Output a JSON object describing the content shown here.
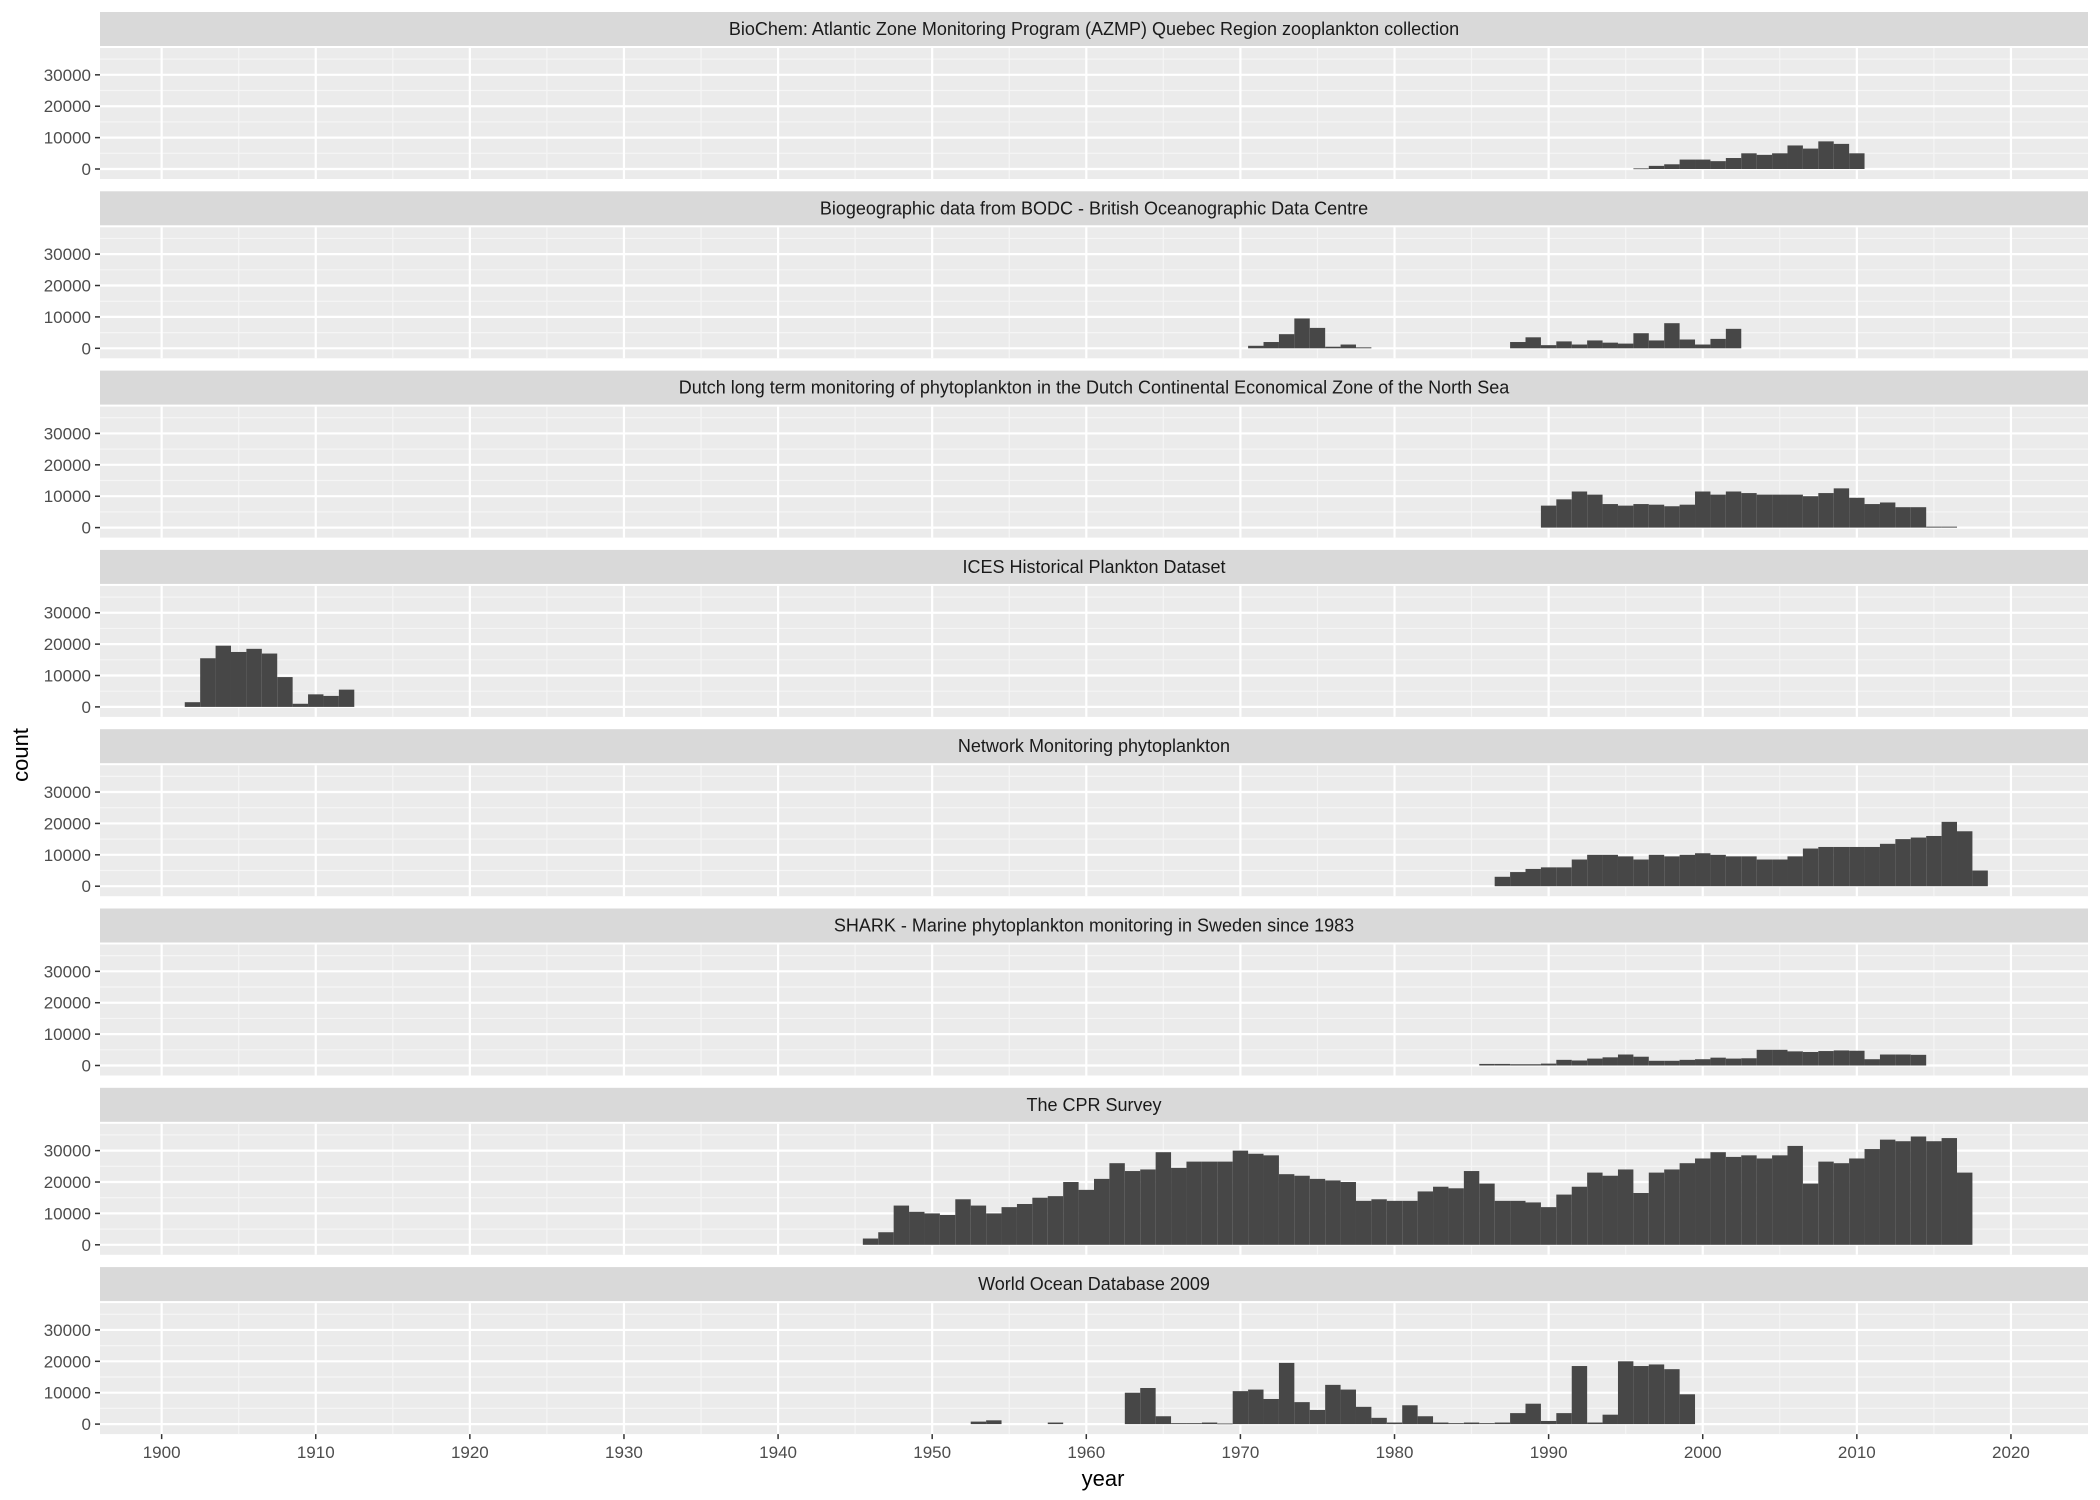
{
  "chart_data": {
    "type": "bar",
    "subtype": "faceted-histogram",
    "xlabel": "year",
    "ylabel": "count",
    "xlim": [
      1896,
      2025
    ],
    "ylim": [
      0,
      36000
    ],
    "x_ticks": [
      1900,
      1910,
      1920,
      1930,
      1940,
      1950,
      1960,
      1970,
      1980,
      1990,
      2000,
      2010,
      2020
    ],
    "y_ticks": [
      0,
      10000,
      20000,
      30000
    ],
    "bin_width": 1,
    "grid": true,
    "colors": {
      "panel_background": "#EBEBEB",
      "strip_background": "#D9D9D9",
      "bar": "#474747",
      "grid_major": "#FFFFFF",
      "grid_minor": "#F5F5F5"
    },
    "facets": [
      {
        "title": "BioChem: Atlantic Zone Monitoring Program (AZMP) Quebec Region zooplankton collection",
        "bins": [
          [
            1996,
            200
          ],
          [
            1997,
            1000
          ],
          [
            1998,
            1500
          ],
          [
            1999,
            3000
          ],
          [
            2000,
            3000
          ],
          [
            2001,
            2500
          ],
          [
            2002,
            3500
          ],
          [
            2003,
            5000
          ],
          [
            2004,
            4500
          ],
          [
            2005,
            5000
          ],
          [
            2006,
            7500
          ],
          [
            2007,
            6500
          ],
          [
            2008,
            8800
          ],
          [
            2009,
            8000
          ],
          [
            2010,
            5000
          ]
        ]
      },
      {
        "title": "Biogeographic data from BODC - British Oceanographic Data Centre",
        "bins": [
          [
            1971,
            800
          ],
          [
            1972,
            2000
          ],
          [
            1973,
            4500
          ],
          [
            1974,
            9500
          ],
          [
            1975,
            6500
          ],
          [
            1976,
            500
          ],
          [
            1977,
            1200
          ],
          [
            1978,
            300
          ],
          [
            1988,
            2000
          ],
          [
            1989,
            3500
          ],
          [
            1990,
            1000
          ],
          [
            1991,
            2200
          ],
          [
            1992,
            1200
          ],
          [
            1993,
            2500
          ],
          [
            1994,
            1800
          ],
          [
            1995,
            1500
          ],
          [
            1996,
            4800
          ],
          [
            1997,
            2500
          ],
          [
            1998,
            8000
          ],
          [
            1999,
            2800
          ],
          [
            2000,
            1200
          ],
          [
            2001,
            3000
          ],
          [
            2002,
            6200
          ]
        ]
      },
      {
        "title": "Dutch long term monitoring of phytoplankton in the Dutch Continental Economical Zone of the North Sea",
        "bins": [
          [
            1990,
            7000
          ],
          [
            1991,
            9000
          ],
          [
            1992,
            11500
          ],
          [
            1993,
            10500
          ],
          [
            1994,
            7500
          ],
          [
            1995,
            7000
          ],
          [
            1996,
            7500
          ],
          [
            1997,
            7300
          ],
          [
            1998,
            6800
          ],
          [
            1999,
            7300
          ],
          [
            2000,
            11500
          ],
          [
            2001,
            10500
          ],
          [
            2002,
            11500
          ],
          [
            2003,
            11000
          ],
          [
            2004,
            10500
          ],
          [
            2005,
            10500
          ],
          [
            2006,
            10500
          ],
          [
            2007,
            10000
          ],
          [
            2008,
            11000
          ],
          [
            2009,
            12500
          ],
          [
            2010,
            9500
          ],
          [
            2011,
            7500
          ],
          [
            2012,
            8000
          ],
          [
            2013,
            6500
          ],
          [
            2014,
            6500
          ],
          [
            2015,
            300
          ],
          [
            2016,
            300
          ]
        ]
      },
      {
        "title": "ICES Historical Plankton Dataset",
        "bins": [
          [
            1902,
            1500
          ],
          [
            1903,
            15500
          ],
          [
            1904,
            19500
          ],
          [
            1905,
            17500
          ],
          [
            1906,
            18500
          ],
          [
            1907,
            17000
          ],
          [
            1908,
            9500
          ],
          [
            1909,
            1000
          ],
          [
            1910,
            4000
          ],
          [
            1911,
            3500
          ],
          [
            1912,
            5500
          ]
        ]
      },
      {
        "title": "Network Monitoring phytoplankton",
        "bins": [
          [
            1987,
            3000
          ],
          [
            1988,
            4500
          ],
          [
            1989,
            5500
          ],
          [
            1990,
            6000
          ],
          [
            1991,
            6000
          ],
          [
            1992,
            8500
          ],
          [
            1993,
            10000
          ],
          [
            1994,
            10000
          ],
          [
            1995,
            9500
          ],
          [
            1996,
            8500
          ],
          [
            1997,
            10000
          ],
          [
            1998,
            9500
          ],
          [
            1999,
            10000
          ],
          [
            2000,
            10500
          ],
          [
            2001,
            10000
          ],
          [
            2002,
            9500
          ],
          [
            2003,
            9500
          ],
          [
            2004,
            8500
          ],
          [
            2005,
            8500
          ],
          [
            2006,
            9500
          ],
          [
            2007,
            12000
          ],
          [
            2008,
            12500
          ],
          [
            2009,
            12500
          ],
          [
            2010,
            12500
          ],
          [
            2011,
            12500
          ],
          [
            2012,
            13500
          ],
          [
            2013,
            15000
          ],
          [
            2014,
            15500
          ],
          [
            2015,
            16000
          ],
          [
            2016,
            20500
          ],
          [
            2017,
            17500
          ],
          [
            2018,
            5000
          ]
        ]
      },
      {
        "title": "SHARK - Marine phytoplankton monitoring in Sweden since 1983",
        "bins": [
          [
            1986,
            500
          ],
          [
            1987,
            500
          ],
          [
            1988,
            400
          ],
          [
            1989,
            400
          ],
          [
            1990,
            600
          ],
          [
            1991,
            1800
          ],
          [
            1992,
            1600
          ],
          [
            1993,
            2200
          ],
          [
            1994,
            2600
          ],
          [
            1995,
            3500
          ],
          [
            1996,
            2800
          ],
          [
            1997,
            1500
          ],
          [
            1998,
            1500
          ],
          [
            1999,
            1800
          ],
          [
            2000,
            2000
          ],
          [
            2001,
            2500
          ],
          [
            2002,
            2200
          ],
          [
            2003,
            2300
          ],
          [
            2004,
            5000
          ],
          [
            2005,
            5000
          ],
          [
            2006,
            4500
          ],
          [
            2007,
            4300
          ],
          [
            2008,
            4600
          ],
          [
            2009,
            4800
          ],
          [
            2010,
            4700
          ],
          [
            2011,
            2000
          ],
          [
            2012,
            3500
          ],
          [
            2013,
            3500
          ],
          [
            2014,
            3400
          ]
        ]
      },
      {
        "title": "The CPR Survey",
        "bins": [
          [
            1946,
            2000
          ],
          [
            1947,
            4000
          ],
          [
            1948,
            12500
          ],
          [
            1949,
            10500
          ],
          [
            1950,
            10000
          ],
          [
            1951,
            9500
          ],
          [
            1952,
            14500
          ],
          [
            1953,
            12500
          ],
          [
            1954,
            10000
          ],
          [
            1955,
            12000
          ],
          [
            1956,
            13000
          ],
          [
            1957,
            15000
          ],
          [
            1958,
            15500
          ],
          [
            1959,
            20000
          ],
          [
            1960,
            17500
          ],
          [
            1961,
            21000
          ],
          [
            1962,
            26000
          ],
          [
            1963,
            23500
          ],
          [
            1964,
            24000
          ],
          [
            1965,
            29500
          ],
          [
            1966,
            24500
          ],
          [
            1967,
            26500
          ],
          [
            1968,
            26500
          ],
          [
            1969,
            26500
          ],
          [
            1970,
            30000
          ],
          [
            1971,
            29000
          ],
          [
            1972,
            28500
          ],
          [
            1973,
            22500
          ],
          [
            1974,
            22000
          ],
          [
            1975,
            21000
          ],
          [
            1976,
            20500
          ],
          [
            1977,
            20000
          ],
          [
            1978,
            14000
          ],
          [
            1979,
            14500
          ],
          [
            1980,
            14000
          ],
          [
            1981,
            14000
          ],
          [
            1982,
            17000
          ],
          [
            1983,
            18500
          ],
          [
            1984,
            18000
          ],
          [
            1985,
            23500
          ],
          [
            1986,
            19500
          ],
          [
            1987,
            14000
          ],
          [
            1988,
            14000
          ],
          [
            1989,
            13500
          ],
          [
            1990,
            12000
          ],
          [
            1991,
            16000
          ],
          [
            1992,
            18500
          ],
          [
            1993,
            23000
          ],
          [
            1994,
            22000
          ],
          [
            1995,
            24000
          ],
          [
            1996,
            16500
          ],
          [
            1997,
            23000
          ],
          [
            1998,
            24000
          ],
          [
            1999,
            26000
          ],
          [
            2000,
            27500
          ],
          [
            2001,
            29500
          ],
          [
            2002,
            28000
          ],
          [
            2003,
            28500
          ],
          [
            2004,
            27500
          ],
          [
            2005,
            28500
          ],
          [
            2006,
            31500
          ],
          [
            2007,
            19500
          ],
          [
            2008,
            26500
          ],
          [
            2009,
            26000
          ],
          [
            2010,
            27500
          ],
          [
            2011,
            30500
          ],
          [
            2012,
            33500
          ],
          [
            2013,
            33000
          ],
          [
            2014,
            34500
          ],
          [
            2015,
            33000
          ],
          [
            2016,
            34000
          ],
          [
            2017,
            23000
          ]
        ]
      },
      {
        "title": "World Ocean Database 2009",
        "bins": [
          [
            1953,
            800
          ],
          [
            1954,
            1200
          ],
          [
            1958,
            500
          ],
          [
            1963,
            10000
          ],
          [
            1964,
            11500
          ],
          [
            1965,
            2500
          ],
          [
            1966,
            300
          ],
          [
            1967,
            300
          ],
          [
            1968,
            500
          ],
          [
            1969,
            200
          ],
          [
            1970,
            10500
          ],
          [
            1971,
            11000
          ],
          [
            1972,
            8000
          ],
          [
            1973,
            19500
          ],
          [
            1974,
            7000
          ],
          [
            1975,
            4500
          ],
          [
            1976,
            12500
          ],
          [
            1977,
            11000
          ],
          [
            1978,
            5500
          ],
          [
            1979,
            2000
          ],
          [
            1980,
            500
          ],
          [
            1981,
            6000
          ],
          [
            1982,
            2500
          ],
          [
            1983,
            500
          ],
          [
            1984,
            300
          ],
          [
            1985,
            500
          ],
          [
            1986,
            300
          ],
          [
            1987,
            500
          ],
          [
            1988,
            3500
          ],
          [
            1989,
            6500
          ],
          [
            1990,
            1000
          ],
          [
            1991,
            3500
          ],
          [
            1992,
            18500
          ],
          [
            1993,
            500
          ],
          [
            1994,
            3000
          ],
          [
            1995,
            20000
          ],
          [
            1996,
            18500
          ],
          [
            1997,
            19000
          ],
          [
            1998,
            17500
          ],
          [
            1999,
            9500
          ]
        ]
      }
    ]
  }
}
